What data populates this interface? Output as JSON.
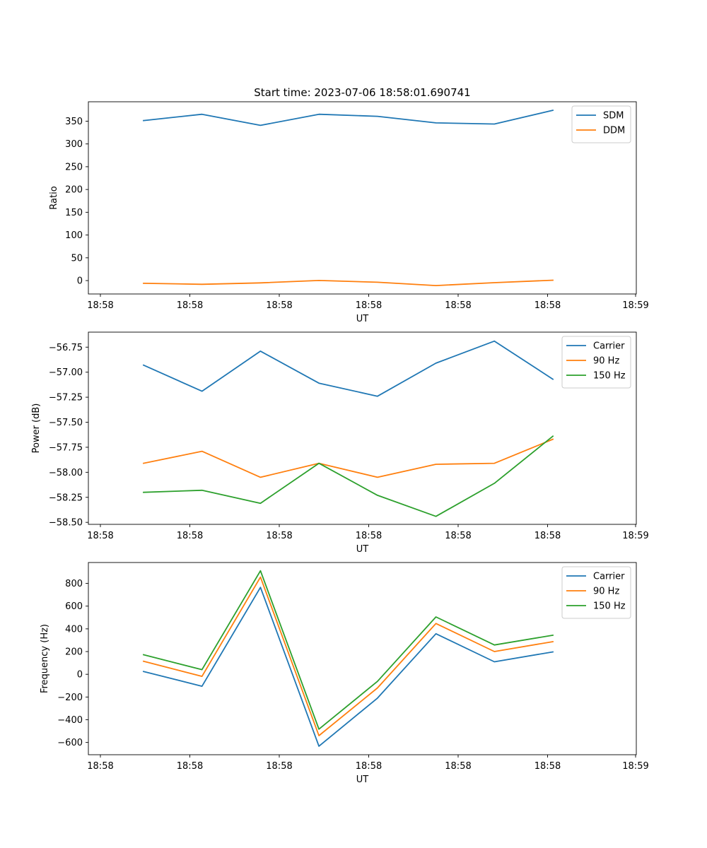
{
  "figure_title": "Start time: 2023-07-06 18:58:01.690741",
  "colors": {
    "blue": "#1f77b4",
    "orange": "#ff7f0e",
    "green": "#2ca02c"
  },
  "chart_data": [
    {
      "type": "line",
      "title": "Start time: 2023-07-06 18:58:01.690741",
      "xlabel": "UT",
      "ylabel": "Ratio",
      "x_tick_labels": [
        "18:58",
        "18:58",
        "18:58",
        "18:58",
        "18:58",
        "18:58",
        "18:59"
      ],
      "y_ticks": [
        0,
        50,
        100,
        150,
        200,
        250,
        300,
        350
      ],
      "ylim": [
        -29.4,
        392.6
      ],
      "legend_position": "upper-right",
      "series": [
        {
          "name": "SDM",
          "color": "#1f77b4",
          "values": [
            351.3,
            365.1,
            340.8,
            365.1,
            360.7,
            346.2,
            343.8,
            373.8
          ]
        },
        {
          "name": "DDM",
          "color": "#ff7f0e",
          "values": [
            -5.9,
            -8.2,
            -5.1,
            0.2,
            -3.6,
            -10.9,
            -4.6,
            0.9
          ]
        }
      ]
    },
    {
      "type": "line",
      "title": "",
      "xlabel": "UT",
      "ylabel": "Power (dB)",
      "x_tick_labels": [
        "18:58",
        "18:58",
        "18:58",
        "18:58",
        "18:58",
        "18:58",
        "18:59"
      ],
      "y_ticks": [
        -58.5,
        -58.25,
        -58.0,
        -57.75,
        -57.5,
        -57.25,
        -57.0,
        -56.75
      ],
      "y_tick_labels": [
        "−58.50",
        "−58.25",
        "−58.00",
        "−57.75",
        "−57.50",
        "−57.25",
        "−57.00",
        "−56.75"
      ],
      "ylim": [
        -58.52,
        -56.6
      ],
      "legend_position": "upper-right",
      "series": [
        {
          "name": "Carrier",
          "color": "#1f77b4",
          "values": [
            -56.93,
            -57.19,
            -56.79,
            -57.11,
            -57.24,
            -56.91,
            -56.69,
            -57.07
          ]
        },
        {
          "name": "90 Hz",
          "color": "#ff7f0e",
          "values": [
            -57.91,
            -57.79,
            -58.05,
            -57.91,
            -58.05,
            -57.92,
            -57.91,
            -57.67
          ]
        },
        {
          "name": "150 Hz",
          "color": "#2ca02c",
          "values": [
            -58.2,
            -58.18,
            -58.31,
            -57.91,
            -58.23,
            -58.44,
            -58.11,
            -57.64
          ]
        }
      ]
    },
    {
      "type": "line",
      "title": "",
      "xlabel": "UT",
      "ylabel": "Frequency (Hz)",
      "x_tick_labels": [
        "18:58",
        "18:58",
        "18:58",
        "18:58",
        "18:58",
        "18:58",
        "18:59"
      ],
      "y_ticks": [
        -600,
        -400,
        -200,
        0,
        200,
        400,
        600,
        800
      ],
      "y_tick_labels": [
        "−600",
        "−400",
        "−200",
        "0",
        "200",
        "400",
        "600",
        "800"
      ],
      "ylim": [
        -708,
        984
      ],
      "legend_position": "upper-right",
      "series": [
        {
          "name": "Carrier",
          "color": "#1f77b4",
          "values": [
            25,
            -105,
            765,
            -633,
            -210,
            357,
            110,
            197
          ]
        },
        {
          "name": "90 Hz",
          "color": "#ff7f0e",
          "values": [
            115,
            -18,
            855,
            -540,
            -120,
            447,
            200,
            287
          ]
        },
        {
          "name": "150 Hz",
          "color": "#2ca02c",
          "values": [
            172,
            41,
            911,
            -483,
            -62,
            505,
            258,
            344
          ]
        }
      ]
    }
  ]
}
